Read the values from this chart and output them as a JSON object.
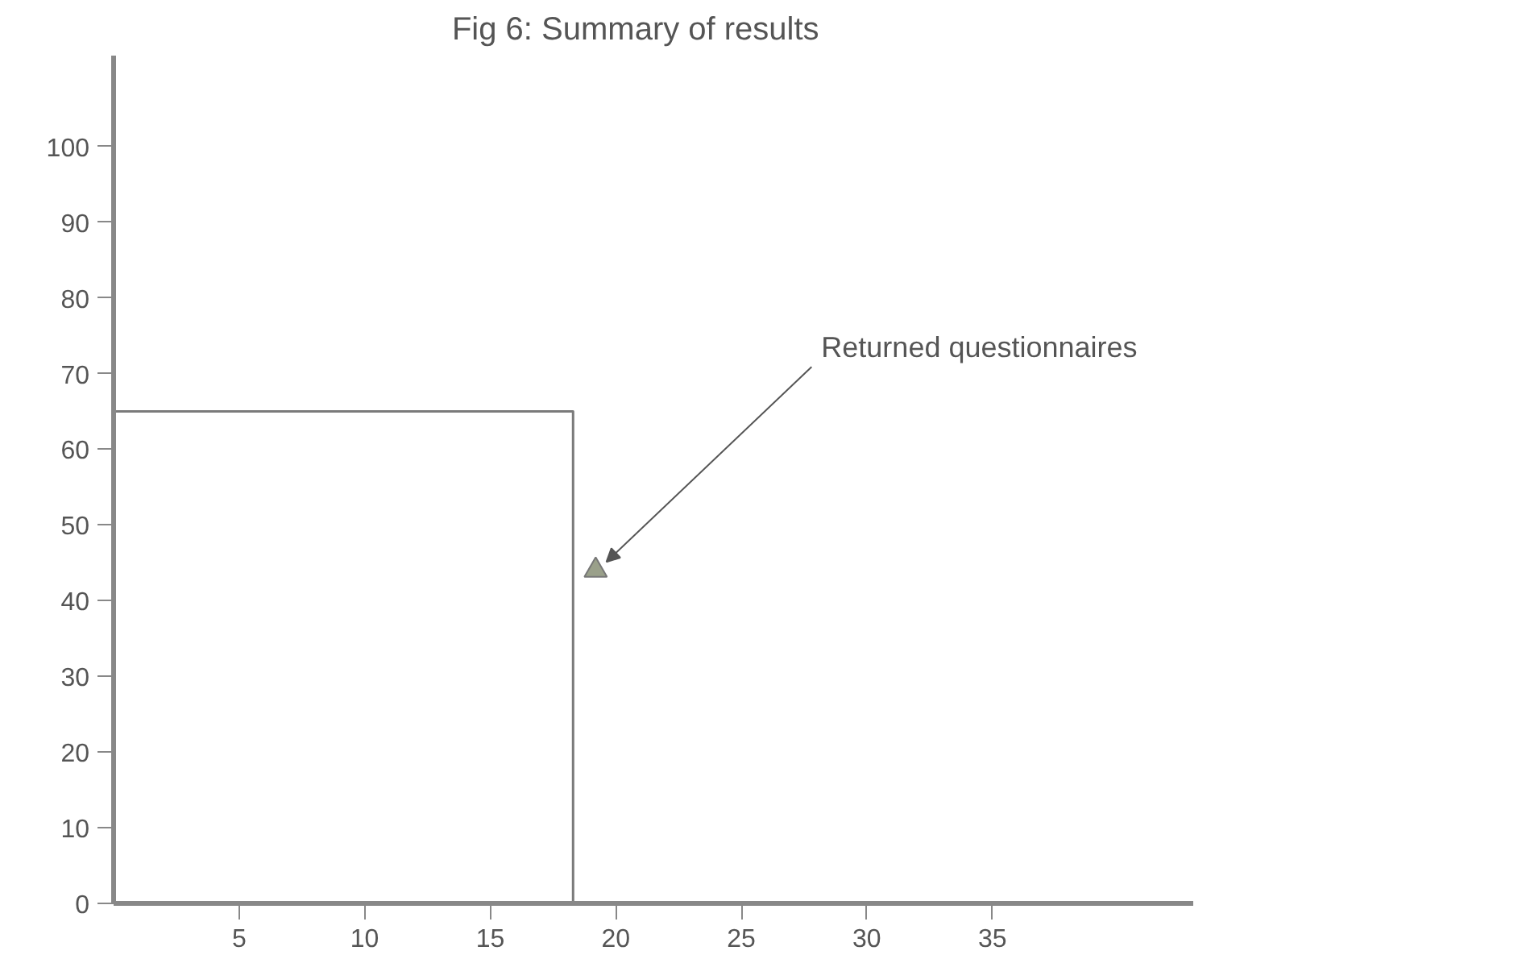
{
  "chart_data": {
    "type": "line",
    "title": "Fig 6:     Summary of results",
    "series": [
      {
        "color": "#7a7a7a",
        "x": [
          0,
          18.3,
          18.3
        ],
        "values": [
          65,
          65,
          0
        ],
        "marker": "none"
      },
      {
        "type": "scatter",
        "color": "#9aa08a",
        "x": [
          19.2
        ],
        "values": [
          44
        ],
        "marker": "triangle"
      }
    ],
    "annotations": [
      {
        "text": "Returned questionnaires",
        "x": 19.2,
        "y": 44
      }
    ],
    "xlim": [
      0,
      43
    ],
    "ylim": [
      0,
      112
    ],
    "xticks": [
      5,
      10,
      15,
      20,
      25,
      30,
      35
    ],
    "yticks": [
      0,
      10,
      20,
      30,
      40,
      50,
      60,
      70,
      80,
      90,
      100
    ],
    "grid": false
  }
}
